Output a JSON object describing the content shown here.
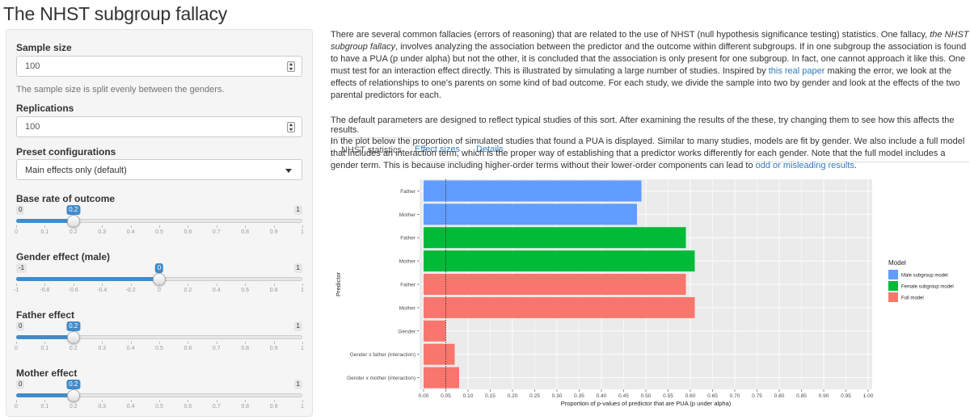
{
  "page": {
    "title": "The NHST subgroup fallacy"
  },
  "sidebar": {
    "sample_size": {
      "label": "Sample size",
      "value": "100",
      "help": "The sample size is split evenly between the genders."
    },
    "replications": {
      "label": "Replications",
      "value": "100"
    },
    "preset": {
      "label": "Preset configurations",
      "selected": "Main effects only (default)"
    },
    "sliders": [
      {
        "label": "Base rate of outcome",
        "min": 0,
        "max": 1,
        "value": 0.2,
        "min_label": "0",
        "max_label": "1",
        "value_label": "0.2",
        "ticks": [
          "0",
          "0.1",
          "0.2",
          "0.3",
          "0.4",
          "0.5",
          "0.6",
          "0.7",
          "0.8",
          "0.9",
          "1"
        ]
      },
      {
        "label": "Gender effect (male)",
        "min": -1,
        "max": 1,
        "value": 0,
        "min_label": "-1",
        "max_label": "1",
        "value_label": "0",
        "ticks": [
          "-1",
          "-0.8",
          "-0.6",
          "-0.4",
          "-0.2",
          "0",
          "0.2",
          "0.4",
          "0.6",
          "0.8",
          "1"
        ]
      },
      {
        "label": "Father effect",
        "min": 0,
        "max": 1,
        "value": 0.2,
        "min_label": "0",
        "max_label": "1",
        "value_label": "0.2",
        "ticks": [
          "0",
          "0.1",
          "0.2",
          "0.3",
          "0.4",
          "0.5",
          "0.6",
          "0.7",
          "0.8",
          "0.9",
          "1"
        ]
      },
      {
        "label": "Mother effect",
        "min": 0,
        "max": 1,
        "value": 0.2,
        "min_label": "0",
        "max_label": "1",
        "value_label": "0.2",
        "ticks": [
          "0",
          "0.1",
          "0.2",
          "0.3",
          "0.4",
          "0.5",
          "0.6",
          "0.7",
          "0.8",
          "0.9",
          "1"
        ]
      }
    ]
  },
  "main": {
    "intro": {
      "p1_a": "There are several common fallacies (errors of reasoning) that are related to the use of NHST (null hypothesis significance testing) statistics. One fallacy, ",
      "p1_em": "the NHST subgroup fallacy",
      "p1_b": ", involves analyzing the association between the predictor and the outcome within different subgroups. If in one subgroup the association is found to have a PUA (p under alpha) but not the other, it is concluded that the association is only present for one subgroup. In fact, one cannot approach it like this. One must test for an interaction effect directly. This is illustrated by simulating a large number of studies. Inspired by ",
      "p1_link": "this real paper",
      "p1_c": " making the error, we look at the effects of relationships to one's parents on some kind of bad outcome. For each study, we divide the sample into two by gender and look at the effects of the two parental predictors for each.",
      "p2": "The default parameters are designed to reflect typical studies of this sort. After examining the results of the these, try changing them to see how this affects the results."
    },
    "tabs": [
      {
        "label": "NHST statistics"
      },
      {
        "label": "Effect sizes"
      },
      {
        "label": "Details"
      }
    ],
    "tab_desc": {
      "a": "In the plot below the proportion of simulated studies that found a PUA is displayed. Similar to many studies, models are fit by gender. We also include a full model that includes an interaction term, which is the proper way of establishing that a predictor works differently for each gender. Note that the full model includes a gender term. This is because including higher-order terms without their lower-order components can lead to ",
      "link": "odd or misleading results",
      "b": "."
    }
  },
  "chart_data": {
    "type": "bar",
    "orientation": "horizontal",
    "xlabel": "Proportion of p-values of predictor that are PUA (p under alpha)",
    "ylabel": "Predictor",
    "xlim": [
      0,
      1.0
    ],
    "x_ticks": [
      "0.00",
      "0.05",
      "0.10",
      "0.15",
      "0.20",
      "0.25",
      "0.30",
      "0.35",
      "0.40",
      "0.45",
      "0.50",
      "0.55",
      "0.60",
      "0.65",
      "0.70",
      "0.75",
      "0.80",
      "0.85",
      "0.90",
      "0.95",
      "1.00"
    ],
    "reference_line": 0.05,
    "legend_title": "Model",
    "legend_position": "right",
    "grid": true,
    "background": "#ebebeb",
    "series": [
      {
        "name": "Male subgroup model",
        "color": "#619cff"
      },
      {
        "name": "Female subgroup model",
        "color": "#00ba38"
      },
      {
        "name": "Full model",
        "color": "#f8766d"
      }
    ],
    "bars": [
      {
        "label": "Father",
        "series": 0,
        "value": 0.49
      },
      {
        "label": "Mother",
        "series": 0,
        "value": 0.48
      },
      {
        "label": "Father",
        "series": 1,
        "value": 0.59
      },
      {
        "label": "Mother",
        "series": 1,
        "value": 0.61
      },
      {
        "label": "Father",
        "series": 2,
        "value": 0.59
      },
      {
        "label": "Mother",
        "series": 2,
        "value": 0.61
      },
      {
        "label": "Gender",
        "series": 2,
        "value": 0.05
      },
      {
        "label": "Gender x father (interaction)",
        "series": 2,
        "value": 0.07
      },
      {
        "label": "Gender x mother (interaction)",
        "series": 2,
        "value": 0.08
      }
    ]
  }
}
